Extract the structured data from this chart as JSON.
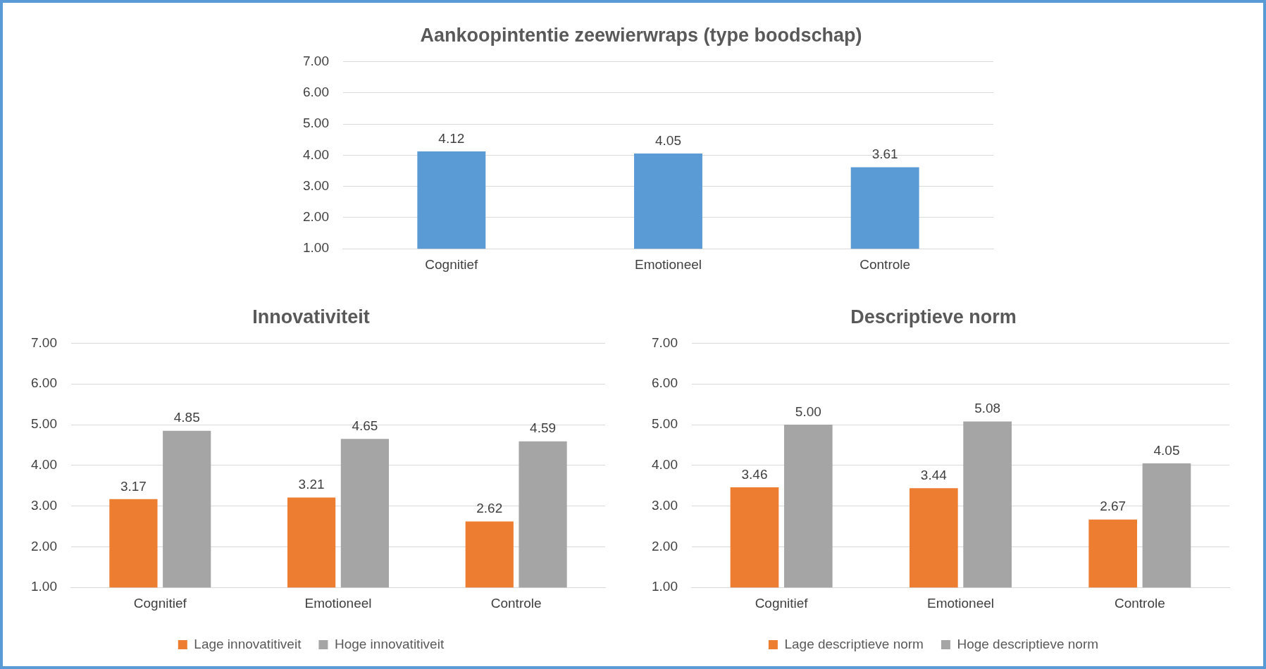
{
  "chart_data": [
    {
      "type": "bar",
      "title": "Aankoopintentie zeewierwraps (type boodschap)",
      "categories": [
        "Cognitief",
        "Emotioneel",
        "Controle"
      ],
      "values": [
        4.12,
        4.05,
        3.61
      ],
      "value_labels": [
        "4.12",
        "4.05",
        "3.61"
      ],
      "color": "#5b9bd5",
      "ylim": [
        1,
        7
      ],
      "yticks": [
        {
          "value": 1,
          "label": "1.00"
        },
        {
          "value": 2,
          "label": "2.00"
        },
        {
          "value": 3,
          "label": "3.00"
        },
        {
          "value": 4,
          "label": "4.00"
        },
        {
          "value": 5,
          "label": "5.00"
        },
        {
          "value": 6,
          "label": "6.00"
        },
        {
          "value": 7,
          "label": "7.00"
        }
      ],
      "grid": "y",
      "legend": false
    },
    {
      "type": "bar",
      "title": "Innovativiteit",
      "categories": [
        "Cognitief",
        "Emotioneel",
        "Controle"
      ],
      "series": [
        {
          "name": "Lage innovatitiveit",
          "color": "#ed7d31",
          "values": [
            3.17,
            3.21,
            2.62
          ],
          "value_labels": [
            "3.17",
            "3.21",
            "2.62"
          ]
        },
        {
          "name": "Hoge innovatitiveit",
          "color": "#a5a5a5",
          "values": [
            4.85,
            4.65,
            4.59
          ],
          "value_labels": [
            "4.85",
            "4.65",
            "4.59"
          ]
        }
      ],
      "ylim": [
        1,
        7
      ],
      "yticks": [
        {
          "value": 1,
          "label": "1.00"
        },
        {
          "value": 2,
          "label": "2.00"
        },
        {
          "value": 3,
          "label": "3.00"
        },
        {
          "value": 4,
          "label": "4.00"
        },
        {
          "value": 5,
          "label": "5.00"
        },
        {
          "value": 6,
          "label": "6.00"
        },
        {
          "value": 7,
          "label": "7.00"
        }
      ],
      "grid": "y",
      "legend": "bottom"
    },
    {
      "type": "bar",
      "title": "Descriptieve norm",
      "categories": [
        "Cognitief",
        "Emotioneel",
        "Controle"
      ],
      "series": [
        {
          "name": "Lage descriptieve norm",
          "color": "#ed7d31",
          "values": [
            3.46,
            3.44,
            2.67
          ],
          "value_labels": [
            "3.46",
            "3.44",
            "2.67"
          ]
        },
        {
          "name": "Hoge descriptieve norm",
          "color": "#a5a5a5",
          "values": [
            5,
            5.08,
            4.05
          ],
          "value_labels": [
            "5.00",
            "5.08",
            "4.05"
          ]
        }
      ],
      "ylim": [
        1,
        7
      ],
      "yticks": [
        {
          "value": 1,
          "label": "1.00"
        },
        {
          "value": 2,
          "label": "2.00"
        },
        {
          "value": 3,
          "label": "3.00"
        },
        {
          "value": 4,
          "label": "4.00"
        },
        {
          "value": 5,
          "label": "5.00"
        },
        {
          "value": 6,
          "label": "6.00"
        },
        {
          "value": 7,
          "label": "7.00"
        }
      ],
      "grid": "y",
      "legend": "bottom"
    }
  ]
}
